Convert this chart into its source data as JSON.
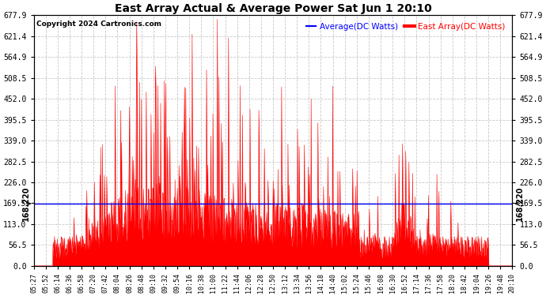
{
  "title": "East Array Actual & Average Power Sat Jun 1 20:10",
  "copyright": "Copyright 2024 Cartronics.com",
  "legend_avg": "Average(DC Watts)",
  "legend_east": "East Array(DC Watts)",
  "avg_line_value": 168.22,
  "avg_line_label": "168.220",
  "y_max": 677.9,
  "y_min": 0.0,
  "y_ticks": [
    0.0,
    56.5,
    113.0,
    169.5,
    226.0,
    282.5,
    339.0,
    395.5,
    452.0,
    508.5,
    564.9,
    621.4,
    677.9
  ],
  "x_tick_labels": [
    "05:27",
    "05:52",
    "06:14",
    "06:36",
    "06:58",
    "07:20",
    "07:42",
    "08:04",
    "08:26",
    "08:48",
    "09:10",
    "09:32",
    "09:54",
    "10:16",
    "10:38",
    "11:00",
    "11:22",
    "11:44",
    "12:06",
    "12:28",
    "12:50",
    "13:12",
    "13:34",
    "13:56",
    "14:18",
    "14:40",
    "15:02",
    "15:24",
    "15:46",
    "16:08",
    "16:30",
    "16:52",
    "17:14",
    "17:36",
    "17:58",
    "18:20",
    "18:42",
    "19:04",
    "19:26",
    "19:48",
    "20:10"
  ],
  "bg_color": "#ffffff",
  "plot_bg_color": "#ffffff",
  "grid_color": "#c8c8c8",
  "red_color": "#ff0000",
  "blue_color": "#0000ff",
  "title_color": "#000000",
  "copyright_color": "#000000"
}
